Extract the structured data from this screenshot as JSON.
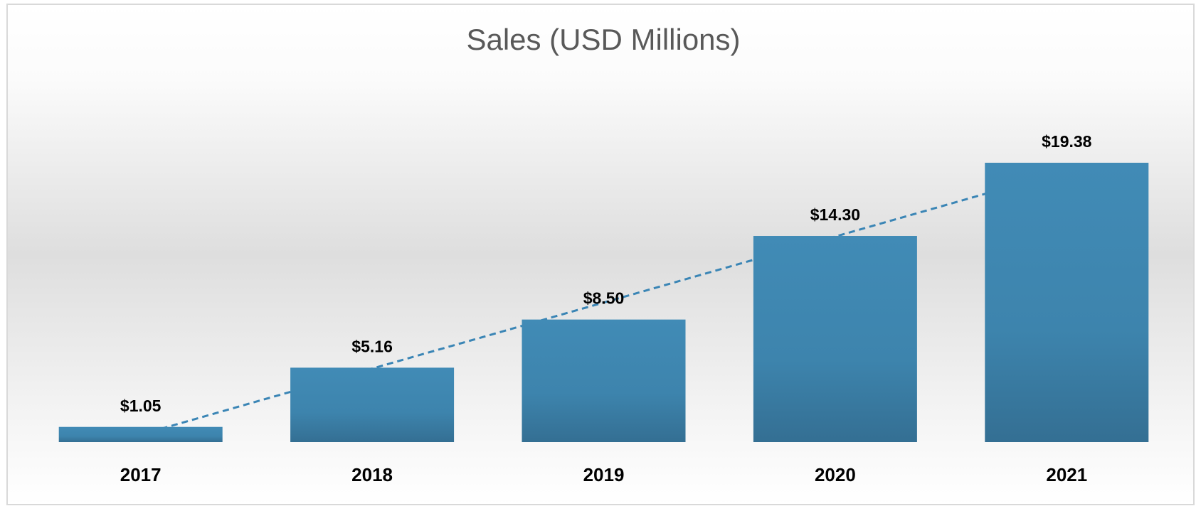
{
  "chart_data": {
    "type": "bar",
    "title": "Sales (USD Millions)",
    "categories": [
      "2017",
      "2018",
      "2019",
      "2020",
      "2021"
    ],
    "values": [
      1.05,
      5.16,
      8.5,
      14.3,
      19.38
    ],
    "value_labels": [
      "$1.05",
      "$5.16",
      "$8.50",
      "$14.30",
      "$19.38"
    ],
    "color": "#3f88b3",
    "trendline": "linear",
    "trendline_color": "#3a85b5"
  }
}
